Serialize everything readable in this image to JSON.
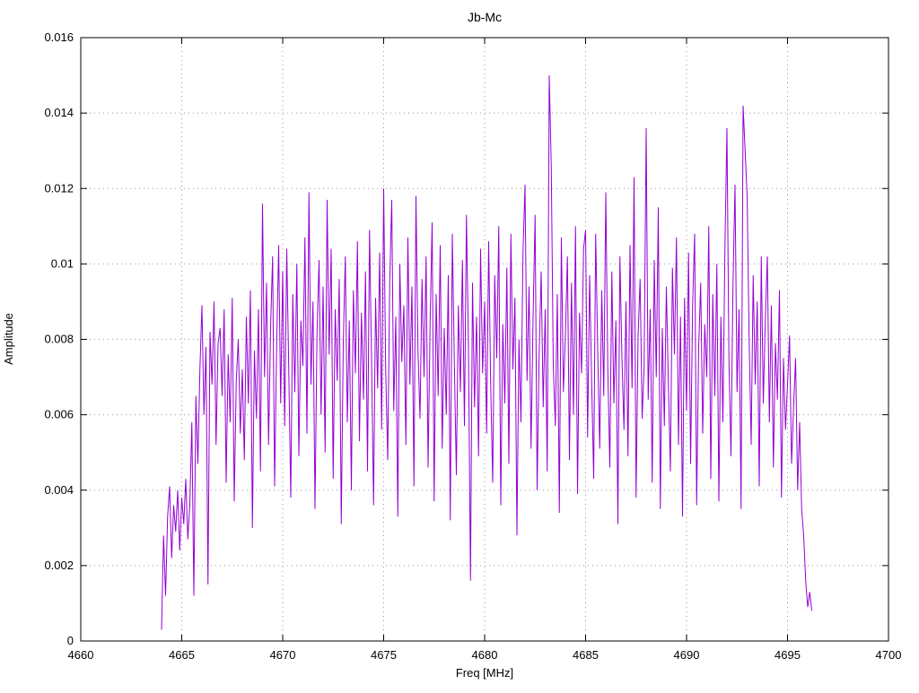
{
  "chart_data": {
    "type": "line",
    "title": "Jb-Mc",
    "xlabel": "Freq [MHz]",
    "ylabel": "Amplitude",
    "xlim": [
      4660,
      4700
    ],
    "ylim": [
      0,
      0.016
    ],
    "x_ticks": [
      4660,
      4665,
      4670,
      4675,
      4680,
      4685,
      4690,
      4695,
      4700
    ],
    "x_tick_labels": [
      "4660",
      "4665",
      "4670",
      "4675",
      "4680",
      "4685",
      "4690",
      "4695",
      "4700"
    ],
    "y_ticks": [
      0,
      0.002,
      0.004,
      0.006,
      0.008,
      0.01,
      0.012,
      0.014,
      0.016
    ],
    "y_tick_labels": [
      "0",
      "0.002",
      "0.004",
      "0.006",
      "0.008",
      "0.01",
      "0.012",
      "0.014",
      "0.016"
    ],
    "grid": true,
    "grid_color": "#9a9a9a",
    "line_color": "#9400d3",
    "background": "#ffffff",
    "legend_position": "none",
    "series": [
      {
        "name": "Jb-Mc",
        "x_start": 4664.0,
        "x_step": 0.1,
        "values": [
          0.0003,
          0.0028,
          0.0012,
          0.0033,
          0.0041,
          0.0022,
          0.0036,
          0.0029,
          0.004,
          0.0024,
          0.0038,
          0.0031,
          0.0043,
          0.0027,
          0.0036,
          0.0058,
          0.0012,
          0.0065,
          0.0047,
          0.0072,
          0.0089,
          0.006,
          0.0078,
          0.0015,
          0.0082,
          0.0068,
          0.009,
          0.0052,
          0.0079,
          0.0083,
          0.0065,
          0.0088,
          0.0042,
          0.0076,
          0.0058,
          0.0091,
          0.0037,
          0.0069,
          0.008,
          0.0055,
          0.0072,
          0.0048,
          0.0086,
          0.0063,
          0.0093,
          0.003,
          0.0077,
          0.0059,
          0.0088,
          0.0045,
          0.0116,
          0.007,
          0.0095,
          0.0052,
          0.0083,
          0.0102,
          0.0041,
          0.0078,
          0.0105,
          0.0063,
          0.0098,
          0.0057,
          0.0104,
          0.0072,
          0.0038,
          0.0092,
          0.0066,
          0.01,
          0.0049,
          0.0085,
          0.0073,
          0.0107,
          0.0055,
          0.0119,
          0.0068,
          0.009,
          0.0035,
          0.0082,
          0.0101,
          0.006,
          0.0094,
          0.005,
          0.0117,
          0.0076,
          0.0104,
          0.0043,
          0.0088,
          0.0069,
          0.0096,
          0.0031,
          0.0079,
          0.0102,
          0.0058,
          0.0085,
          0.004,
          0.0093,
          0.0071,
          0.0106,
          0.0053,
          0.0087,
          0.0064,
          0.0098,
          0.0045,
          0.0109,
          0.0075,
          0.0036,
          0.0091,
          0.0067,
          0.0103,
          0.0056,
          0.012,
          0.0072,
          0.0048,
          0.0095,
          0.0117,
          0.0061,
          0.0086,
          0.0033,
          0.01,
          0.0074,
          0.0089,
          0.0052,
          0.0107,
          0.0068,
          0.0094,
          0.0041,
          0.0118,
          0.0077,
          0.0059,
          0.0096,
          0.007,
          0.0102,
          0.0046,
          0.0084,
          0.0111,
          0.0037,
          0.0092,
          0.0065,
          0.0105,
          0.0051,
          0.0083,
          0.006,
          0.0097,
          0.0032,
          0.0108,
          0.0074,
          0.0044,
          0.0089,
          0.0066,
          0.0101,
          0.0057,
          0.0113,
          0.0078,
          0.0016,
          0.0095,
          0.0062,
          0.0086,
          0.0049,
          0.0104,
          0.0071,
          0.009,
          0.0055,
          0.0106,
          0.0068,
          0.0042,
          0.0097,
          0.0075,
          0.011,
          0.0036,
          0.0084,
          0.0063,
          0.0099,
          0.0047,
          0.0108,
          0.0072,
          0.0091,
          0.0028,
          0.008,
          0.0058,
          0.0103,
          0.0121,
          0.0069,
          0.0094,
          0.0051,
          0.0086,
          0.0113,
          0.004,
          0.0076,
          0.0098,
          0.0062,
          0.0088,
          0.0045,
          0.015,
          0.0126,
          0.0073,
          0.0057,
          0.0092,
          0.0034,
          0.0107,
          0.0066,
          0.0081,
          0.0102,
          0.0048,
          0.0095,
          0.006,
          0.011,
          0.0039,
          0.0087,
          0.0071,
          0.0104,
          0.0109,
          0.0054,
          0.0097,
          0.0069,
          0.0043,
          0.0108,
          0.0077,
          0.0051,
          0.0093,
          0.0065,
          0.0119,
          0.0072,
          0.0046,
          0.0098,
          0.0063,
          0.0085,
          0.0031,
          0.0102,
          0.0075,
          0.0056,
          0.009,
          0.0049,
          0.0105,
          0.0067,
          0.0123,
          0.0038,
          0.0081,
          0.0096,
          0.0059,
          0.0073,
          0.0136,
          0.0064,
          0.0088,
          0.0042,
          0.0101,
          0.007,
          0.0115,
          0.0035,
          0.0083,
          0.0057,
          0.0094,
          0.0068,
          0.0045,
          0.0099,
          0.0076,
          0.0107,
          0.0052,
          0.0086,
          0.0033,
          0.0091,
          0.0061,
          0.0103,
          0.0047,
          0.0089,
          0.0108,
          0.0036,
          0.0078,
          0.0095,
          0.0055,
          0.0084,
          0.007,
          0.011,
          0.0043,
          0.0092,
          0.0065,
          0.01,
          0.0037,
          0.0086,
          0.0058,
          0.0104,
          0.0136,
          0.0074,
          0.0049,
          0.0095,
          0.0121,
          0.0066,
          0.0088,
          0.0035,
          0.0142,
          0.013,
          0.0118,
          0.008,
          0.0052,
          0.0097,
          0.0068,
          0.009,
          0.0041,
          0.0102,
          0.0063,
          0.0085,
          0.0102,
          0.0058,
          0.0089,
          0.0046,
          0.0079,
          0.0064,
          0.0093,
          0.0038,
          0.0075,
          0.0056,
          0.0068,
          0.0081,
          0.0047,
          0.0062,
          0.0075,
          0.004,
          0.0058,
          0.0035,
          0.0028,
          0.0016,
          0.0009,
          0.0013,
          0.0008
        ]
      }
    ]
  }
}
